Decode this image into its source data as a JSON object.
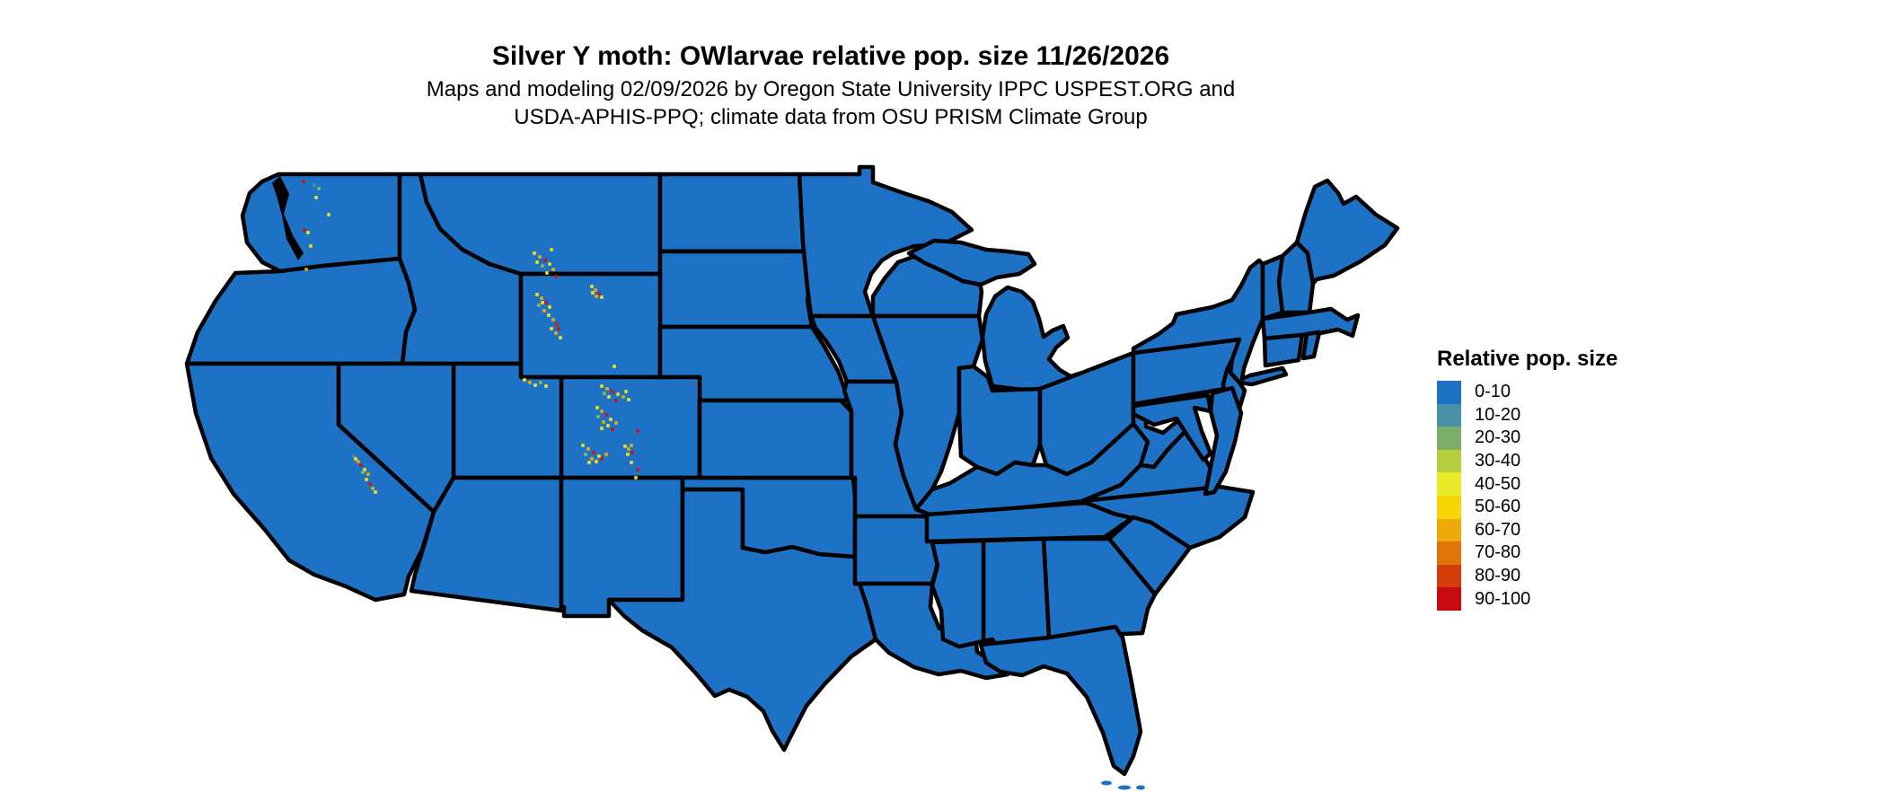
{
  "header": {
    "title": "Silver Y moth: OWlarvae relative pop. size 11/26/2026",
    "subtitle_line1": "Maps and modeling 02/09/2026 by Oregon State University IPPC USPEST.ORG and",
    "subtitle_line2": "USDA-APHIS-PPQ; climate data from OSU PRISM Climate Group"
  },
  "legend": {
    "title": "Relative pop. size",
    "classes": [
      {
        "label": "0-10",
        "color": "#1d72c6"
      },
      {
        "label": "10-20",
        "color": "#4a90a8"
      },
      {
        "label": "20-30",
        "color": "#7cae68"
      },
      {
        "label": "30-40",
        "color": "#b5cf3f"
      },
      {
        "label": "40-50",
        "color": "#ebea28"
      },
      {
        "label": "50-60",
        "color": "#f6d506"
      },
      {
        "label": "60-70",
        "color": "#efa90b"
      },
      {
        "label": "70-80",
        "color": "#e1750a"
      },
      {
        "label": "80-90",
        "color": "#d43d0a"
      },
      {
        "label": "90-100",
        "color": "#c60c10"
      }
    ]
  },
  "map": {
    "land_color": "#1d72c6",
    "border_color": "#000000",
    "hotspot_palette": {
      "y": "#f0e41f",
      "o": "#efa90b",
      "r": "#d21410",
      "g": "#8db65a",
      "t": "#4a90a8"
    },
    "hotspots": [
      [
        138,
        82,
        "r"
      ],
      [
        150,
        86,
        "t"
      ],
      [
        155,
        90,
        "g"
      ],
      [
        152,
        100,
        "y"
      ],
      [
        139,
        136,
        "r"
      ],
      [
        143,
        139,
        "y"
      ],
      [
        146,
        154,
        "y"
      ],
      [
        141,
        180,
        "o"
      ],
      [
        166,
        119,
        "y"
      ],
      [
        395,
        162,
        "y"
      ],
      [
        401,
        166,
        "o"
      ],
      [
        407,
        170,
        "r"
      ],
      [
        412,
        174,
        "y"
      ],
      [
        404,
        176,
        "g"
      ],
      [
        398,
        172,
        "y"
      ],
      [
        416,
        180,
        "o"
      ],
      [
        409,
        184,
        "y"
      ],
      [
        419,
        188,
        "r"
      ],
      [
        414,
        158,
        "y"
      ],
      [
        459,
        199,
        "y"
      ],
      [
        463,
        203,
        "o"
      ],
      [
        467,
        207,
        "r"
      ],
      [
        470,
        211,
        "y"
      ],
      [
        464,
        210,
        "o"
      ],
      [
        460,
        206,
        "y"
      ],
      [
        398,
        208,
        "y"
      ],
      [
        403,
        212,
        "o"
      ],
      [
        408,
        217,
        "r"
      ],
      [
        412,
        222,
        "y"
      ],
      [
        406,
        226,
        "o"
      ],
      [
        400,
        220,
        "g"
      ],
      [
        411,
        231,
        "y"
      ],
      [
        416,
        236,
        "o"
      ],
      [
        420,
        241,
        "r"
      ],
      [
        414,
        246,
        "y"
      ],
      [
        419,
        251,
        "o"
      ],
      [
        424,
        256,
        "y"
      ],
      [
        422,
        246,
        "r"
      ],
      [
        404,
        217,
        "y"
      ],
      [
        484,
        288,
        "y"
      ],
      [
        384,
        303,
        "y"
      ],
      [
        390,
        306,
        "o"
      ],
      [
        396,
        309,
        "y"
      ],
      [
        402,
        306,
        "g"
      ],
      [
        408,
        310,
        "y"
      ],
      [
        470,
        310,
        "y"
      ],
      [
        476,
        313,
        "o"
      ],
      [
        482,
        316,
        "r"
      ],
      [
        488,
        319,
        "y"
      ],
      [
        494,
        322,
        "o"
      ],
      [
        500,
        325,
        "y"
      ],
      [
        478,
        322,
        "y"
      ],
      [
        486,
        326,
        "r"
      ],
      [
        473,
        318,
        "g"
      ],
      [
        497,
        316,
        "y"
      ],
      [
        465,
        334,
        "y"
      ],
      [
        470,
        338,
        "o"
      ],
      [
        475,
        342,
        "r"
      ],
      [
        480,
        347,
        "y"
      ],
      [
        472,
        350,
        "o"
      ],
      [
        466,
        344,
        "g"
      ],
      [
        477,
        354,
        "y"
      ],
      [
        482,
        358,
        "r"
      ],
      [
        470,
        357,
        "y"
      ],
      [
        486,
        351,
        "o"
      ],
      [
        510,
        360,
        "r"
      ],
      [
        449,
        376,
        "y"
      ],
      [
        455,
        380,
        "o"
      ],
      [
        461,
        384,
        "r"
      ],
      [
        467,
        388,
        "y"
      ],
      [
        459,
        391,
        "o"
      ],
      [
        452,
        386,
        "g"
      ],
      [
        464,
        394,
        "y"
      ],
      [
        470,
        391,
        "r"
      ],
      [
        475,
        386,
        "o"
      ],
      [
        456,
        395,
        "y"
      ],
      [
        496,
        377,
        "y"
      ],
      [
        500,
        380,
        "o"
      ],
      [
        504,
        384,
        "r"
      ],
      [
        499,
        386,
        "y"
      ],
      [
        503,
        376,
        "o"
      ],
      [
        503,
        395,
        "y"
      ],
      [
        510,
        403,
        "r"
      ],
      [
        508,
        412,
        "y"
      ],
      [
        194,
        388,
        "t"
      ],
      [
        196,
        391,
        "y"
      ],
      [
        199,
        394,
        "o"
      ],
      [
        202,
        398,
        "r"
      ],
      [
        206,
        403,
        "y"
      ],
      [
        210,
        408,
        "o"
      ],
      [
        204,
        406,
        "g"
      ],
      [
        208,
        414,
        "y"
      ],
      [
        212,
        419,
        "r"
      ],
      [
        215,
        424,
        "o"
      ],
      [
        218,
        428,
        "y"
      ]
    ]
  }
}
